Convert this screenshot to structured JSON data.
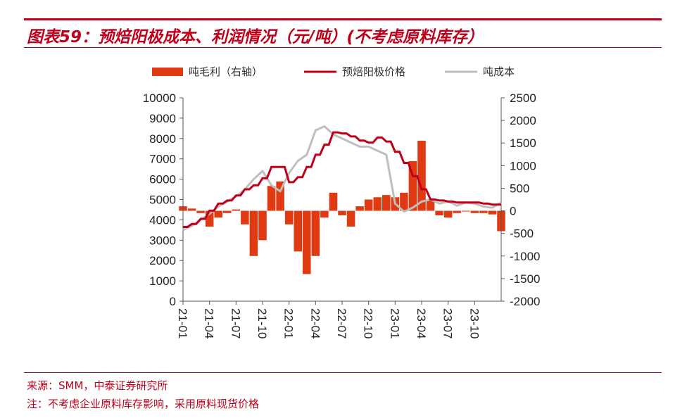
{
  "header": {
    "title": "图表59：预焙阳极成本、利润情况（元/吨）(不考虑原料库存）"
  },
  "footer": {
    "source": "来源：SMM，中泰证券研究所",
    "note": "注：不考虑企业原料库存影响，采用原料现货价格"
  },
  "colors": {
    "accent": "#c0001a",
    "profit": "#e03a12",
    "price": "#c0001a",
    "cost": "#bfbfbf"
  },
  "chart_data": {
    "type": "bar+line",
    "legend": [
      "吨毛利（右轴）",
      "预焙阳极价格",
      "吨成本"
    ],
    "legend_placement": "top",
    "x_tick_labels": [
      "21-01",
      "21-04",
      "21-07",
      "21-10",
      "22-01",
      "22-04",
      "22-07",
      "22-10",
      "23-01",
      "23-04",
      "23-07",
      "23-10"
    ],
    "left_axis": {
      "ylim": [
        0,
        10000
      ],
      "ticks": [
        "0",
        "1000",
        "2000",
        "3000",
        "4000",
        "5000",
        "6000",
        "7000",
        "8000",
        "9000",
        "10000"
      ]
    },
    "right_axis": {
      "ylim": [
        -2000,
        2500
      ],
      "ticks": [
        "-2000",
        "-1500",
        "-1000",
        "-500",
        "0",
        "500",
        "1000",
        "1500",
        "2000",
        "2500"
      ]
    },
    "series": [
      {
        "name": "预焙阳极价格",
        "axis": "left",
        "kind": "step-line",
        "x": [
          0,
          0.5,
          1,
          1.5,
          2,
          2.5,
          3,
          3.5,
          4,
          4.5,
          5,
          5.5,
          6,
          6.5,
          7,
          7.5,
          8,
          8.5,
          9,
          9.5,
          10,
          10.5,
          11,
          11.5,
          12,
          12.5,
          13,
          13.5,
          14,
          14.5,
          15,
          15.5,
          16,
          16.5,
          17,
          17.5,
          18,
          18.5,
          19,
          19.5,
          20,
          20.5,
          21,
          21.5,
          22,
          22.5,
          23,
          23.5,
          24,
          24.5,
          25,
          25.5,
          26,
          26.5,
          27,
          27.5,
          28,
          28.5,
          29,
          29.5,
          30,
          30.5,
          31,
          31.5,
          32,
          32.5,
          33,
          33.5,
          34,
          34.5,
          35,
          35.5,
          36
        ],
        "values": [
          3650,
          3650,
          3800,
          3800,
          4050,
          4050,
          4450,
          4450,
          4800,
          4800,
          4950,
          4950,
          5200,
          5200,
          5500,
          5500,
          5700,
          5700,
          6050,
          6050,
          6600,
          6600,
          6600,
          6600,
          5850,
          5850,
          6100,
          6100,
          6600,
          6600,
          7200,
          7200,
          7700,
          7700,
          8300,
          8300,
          8250,
          8250,
          8100,
          8100,
          7900,
          7900,
          7800,
          7800,
          8050,
          8050,
          7850,
          7850,
          7350,
          7350,
          6800,
          6800,
          6150,
          6150,
          5500,
          5500,
          5000,
          5000,
          4950,
          4950,
          4900,
          4900,
          4850,
          4850,
          4850,
          4850,
          4850,
          4850,
          4800,
          4800,
          4750,
          4750,
          4750
        ]
      },
      {
        "name": "吨成本",
        "axis": "left",
        "kind": "line",
        "x": [
          0,
          1,
          2,
          3,
          4,
          5,
          6,
          7,
          8,
          9,
          10,
          11,
          12,
          13,
          14,
          15,
          16,
          17,
          18,
          19,
          20,
          21,
          22,
          23,
          24,
          25,
          26,
          27,
          28,
          29,
          30,
          31,
          32,
          33,
          34,
          35,
          36
        ],
        "values": [
          3500,
          3700,
          4000,
          4300,
          4650,
          4900,
          5150,
          5500,
          6000,
          6400,
          5700,
          5400,
          6300,
          6900,
          7200,
          8400,
          8600,
          8200,
          8000,
          7800,
          7600,
          7600,
          7400,
          7200,
          4800,
          4400,
          4600,
          4900,
          5000,
          4800,
          4900,
          4700,
          4850,
          4800,
          4650,
          4600,
          4850
        ]
      },
      {
        "name": "吨毛利（右轴）",
        "axis": "right",
        "kind": "bar",
        "x": [
          0,
          1,
          2,
          3,
          4,
          5,
          6,
          7,
          8,
          9,
          10,
          11,
          12,
          13,
          14,
          15,
          16,
          17,
          18,
          19,
          20,
          21,
          22,
          23,
          24,
          25,
          26,
          27,
          28,
          29,
          30,
          31,
          32,
          33,
          34,
          35,
          36
        ],
        "values": [
          100,
          50,
          -50,
          -350,
          -150,
          -50,
          30,
          -300,
          -1000,
          -650,
          550,
          650,
          -300,
          -900,
          -1400,
          -1000,
          -150,
          400,
          -100,
          -350,
          100,
          250,
          300,
          350,
          300,
          400,
          1100,
          1550,
          250,
          -100,
          -150,
          -50,
          0,
          -50,
          -50,
          -80,
          -450
        ]
      }
    ]
  }
}
